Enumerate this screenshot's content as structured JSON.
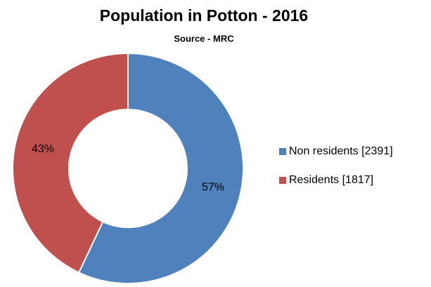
{
  "chart_data": {
    "type": "pie",
    "title": "Population in Potton - 2016",
    "subtitle": "Source - MRC",
    "categories": [
      "Non residents [2391]",
      "Residents [1817]"
    ],
    "values": [
      57,
      43
    ],
    "value_labels": [
      "57%",
      "43%"
    ],
    "colors": [
      "#4f81bd",
      "#c0504d"
    ],
    "donut": true,
    "legend": "right"
  }
}
